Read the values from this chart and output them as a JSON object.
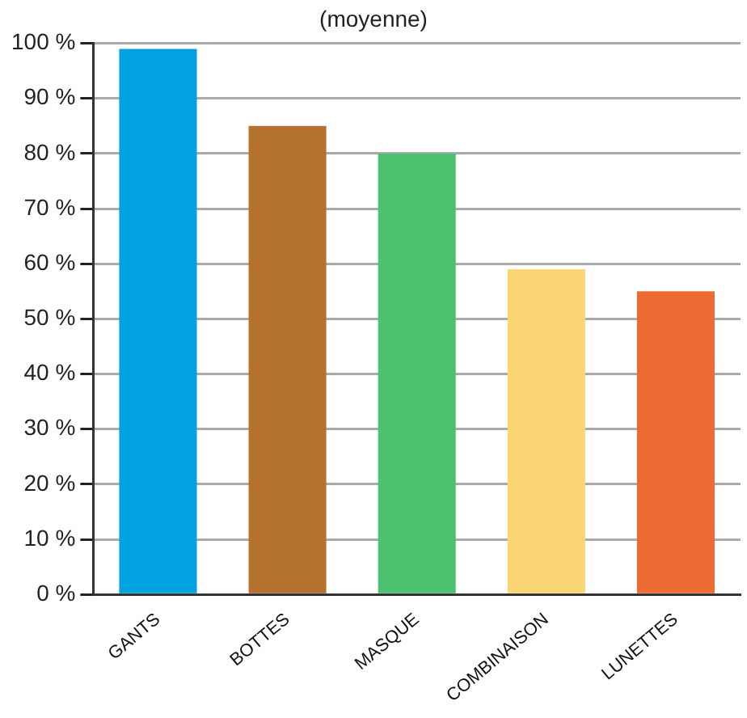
{
  "chart_data": {
    "type": "bar",
    "title": "(moyenne)",
    "categories": [
      "GANTS",
      "BOTTES",
      "MASQUE",
      "COMBINAISON",
      "LUNETTES"
    ],
    "values": [
      99,
      85,
      80,
      59,
      55
    ],
    "colors": [
      "#00a3e0",
      "#b5722e",
      "#4cc26e",
      "#fbd674",
      "#ec6b32"
    ],
    "ylim": [
      0,
      100
    ],
    "yticks": [
      {
        "value": 0,
        "label": "0 %"
      },
      {
        "value": 10,
        "label": "10 %"
      },
      {
        "value": 20,
        "label": "20 %"
      },
      {
        "value": 30,
        "label": "30 %"
      },
      {
        "value": 40,
        "label": "40 %"
      },
      {
        "value": 50,
        "label": "50 %"
      },
      {
        "value": 60,
        "label": "60 %"
      },
      {
        "value": 70,
        "label": "70 %"
      },
      {
        "value": 80,
        "label": "80 %"
      },
      {
        "value": 90,
        "label": "90 %"
      },
      {
        "value": 100,
        "label": "100 %"
      }
    ],
    "grid": "y"
  }
}
